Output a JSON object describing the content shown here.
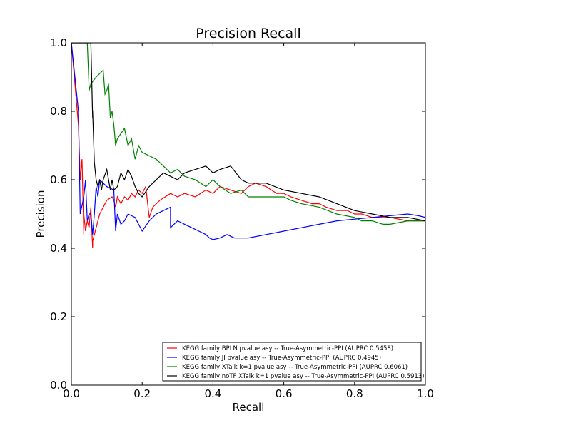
{
  "chart_data": {
    "type": "line",
    "title": "Precision Recall",
    "xlabel": "Recall",
    "ylabel": "Precision",
    "xlim": [
      0.0,
      1.0
    ],
    "ylim": [
      0.0,
      1.0
    ],
    "xticks": [
      "0.0",
      "0.2",
      "0.4",
      "0.6",
      "0.8",
      "1.0"
    ],
    "yticks": [
      "0.0",
      "0.2",
      "0.4",
      "0.6",
      "0.8",
      "1.0"
    ],
    "grid": false,
    "legend_position": "lower-right",
    "series": [
      {
        "name": "KEGG family BPLN pvalue asy -- True-Asymmetric-PPI (AUPRC 0.5458)",
        "color": "#ff0000",
        "x": [
          0.0,
          0.02,
          0.025,
          0.03,
          0.035,
          0.035,
          0.04,
          0.045,
          0.05,
          0.055,
          0.06,
          0.06,
          0.065,
          0.08,
          0.1,
          0.115,
          0.12,
          0.125,
          0.13,
          0.14,
          0.15,
          0.16,
          0.17,
          0.18,
          0.19,
          0.2,
          0.21,
          0.22,
          0.23,
          0.25,
          0.28,
          0.3,
          0.32,
          0.35,
          0.38,
          0.4,
          0.42,
          0.45,
          0.48,
          0.5,
          0.52,
          0.55,
          0.58,
          0.6,
          0.62,
          0.65,
          0.68,
          0.7,
          0.72,
          0.75,
          0.78,
          0.8,
          0.82,
          0.85,
          0.9,
          0.95,
          1.0
        ],
        "y": [
          1.0,
          0.76,
          0.6,
          0.66,
          0.44,
          0.5,
          0.45,
          0.48,
          0.46,
          0.52,
          0.4,
          0.42,
          0.44,
          0.5,
          0.54,
          0.55,
          0.54,
          0.52,
          0.55,
          0.53,
          0.55,
          0.54,
          0.56,
          0.55,
          0.57,
          0.56,
          0.58,
          0.49,
          0.52,
          0.54,
          0.56,
          0.55,
          0.56,
          0.55,
          0.57,
          0.56,
          0.58,
          0.57,
          0.56,
          0.58,
          0.59,
          0.58,
          0.56,
          0.56,
          0.55,
          0.54,
          0.53,
          0.53,
          0.52,
          0.51,
          0.51,
          0.5,
          0.5,
          0.49,
          0.49,
          0.48,
          0.48
        ]
      },
      {
        "name": "KEGG family JI pvalue asy -- True-Asymmetric-PPI (AUPRC 0.4945)",
        "color": "#0000ff",
        "x": [
          0.0,
          0.02,
          0.025,
          0.025,
          0.035,
          0.04,
          0.045,
          0.05,
          0.055,
          0.06,
          0.065,
          0.07,
          0.075,
          0.08,
          0.09,
          0.1,
          0.12,
          0.125,
          0.13,
          0.14,
          0.15,
          0.16,
          0.18,
          0.2,
          0.22,
          0.24,
          0.26,
          0.28,
          0.28,
          0.3,
          0.32,
          0.34,
          0.36,
          0.38,
          0.39,
          0.4,
          0.42,
          0.44,
          0.46,
          0.5,
          0.55,
          0.6,
          0.65,
          0.7,
          0.75,
          0.8,
          0.85,
          0.9,
          0.95,
          0.98,
          1.0
        ],
        "y": [
          1.0,
          0.8,
          0.5,
          0.5,
          0.55,
          0.6,
          0.48,
          0.5,
          0.5,
          0.44,
          0.5,
          0.58,
          0.55,
          0.6,
          0.59,
          0.58,
          0.57,
          0.45,
          0.5,
          0.47,
          0.48,
          0.5,
          0.49,
          0.45,
          0.48,
          0.5,
          0.51,
          0.52,
          0.46,
          0.48,
          0.47,
          0.46,
          0.45,
          0.44,
          0.43,
          0.425,
          0.43,
          0.44,
          0.43,
          0.43,
          0.44,
          0.45,
          0.46,
          0.47,
          0.48,
          0.485,
          0.49,
          0.495,
          0.5,
          0.495,
          0.49
        ]
      },
      {
        "name": "KEGG family XTalk k=1 pvalue asy -- True-Asymmetric-PPI (AUPRC 0.6061)",
        "color": "#008000",
        "x": [
          0.0,
          0.045,
          0.05,
          0.05,
          0.055,
          0.07,
          0.09,
          0.095,
          0.1,
          0.105,
          0.11,
          0.115,
          0.12,
          0.125,
          0.13,
          0.15,
          0.16,
          0.17,
          0.18,
          0.19,
          0.2,
          0.22,
          0.24,
          0.26,
          0.28,
          0.3,
          0.32,
          0.35,
          0.38,
          0.4,
          0.42,
          0.45,
          0.48,
          0.5,
          0.55,
          0.6,
          0.62,
          0.65,
          0.7,
          0.75,
          0.8,
          0.82,
          0.85,
          0.88,
          0.9,
          0.95,
          1.0
        ],
        "y": [
          1.0,
          1.0,
          0.87,
          0.86,
          0.88,
          0.9,
          0.92,
          0.85,
          0.86,
          0.88,
          0.78,
          0.8,
          0.76,
          0.7,
          0.72,
          0.75,
          0.7,
          0.72,
          0.66,
          0.7,
          0.68,
          0.67,
          0.66,
          0.64,
          0.62,
          0.63,
          0.61,
          0.6,
          0.58,
          0.6,
          0.58,
          0.56,
          0.57,
          0.55,
          0.55,
          0.55,
          0.54,
          0.53,
          0.52,
          0.5,
          0.49,
          0.48,
          0.48,
          0.47,
          0.47,
          0.48,
          0.48
        ]
      },
      {
        "name": "KEGG family noTF XTalk k=1 pvalue asy -- True-Asymmetric-PPI (AUPRC 0.5913)",
        "color": "#000000",
        "x": [
          0.0,
          0.055,
          0.06,
          0.06,
          0.065,
          0.07,
          0.075,
          0.08,
          0.085,
          0.09,
          0.1,
          0.11,
          0.115,
          0.12,
          0.13,
          0.14,
          0.15,
          0.16,
          0.17,
          0.18,
          0.19,
          0.2,
          0.22,
          0.24,
          0.26,
          0.28,
          0.3,
          0.32,
          0.35,
          0.38,
          0.4,
          0.42,
          0.45,
          0.48,
          0.5,
          0.55,
          0.6,
          0.65,
          0.7,
          0.75,
          0.8,
          0.85,
          0.9,
          0.95,
          1.0
        ],
        "y": [
          1.0,
          1.0,
          0.78,
          0.8,
          0.65,
          0.6,
          0.58,
          0.6,
          0.57,
          0.6,
          0.63,
          0.57,
          0.6,
          0.57,
          0.58,
          0.62,
          0.6,
          0.63,
          0.61,
          0.58,
          0.56,
          0.55,
          0.58,
          0.6,
          0.62,
          0.61,
          0.6,
          0.62,
          0.63,
          0.64,
          0.62,
          0.63,
          0.64,
          0.6,
          0.59,
          0.59,
          0.57,
          0.56,
          0.55,
          0.53,
          0.51,
          0.5,
          0.49,
          0.49,
          0.48
        ]
      }
    ]
  }
}
